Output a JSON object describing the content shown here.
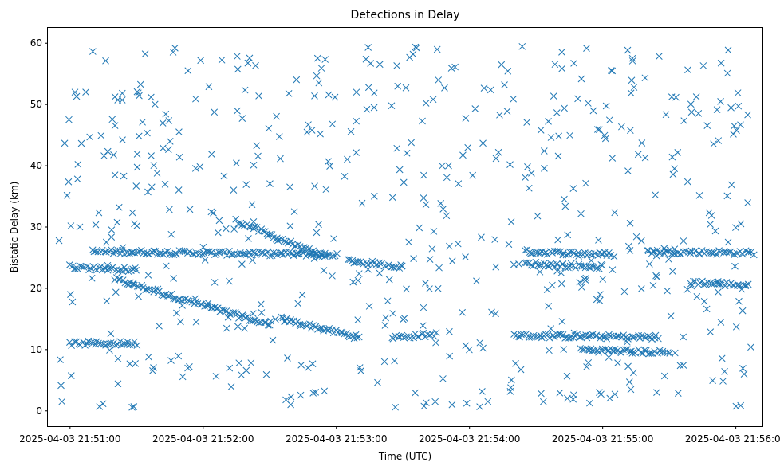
{
  "chart_data": {
    "type": "scatter",
    "title": "Detections in Delay",
    "xlabel": "Time (UTC)",
    "ylabel": "Bistatic Delay (km)",
    "x_axis": {
      "start": "2025-04-03 21:50:50",
      "end": "2025-04-03 21:56:12",
      "tick_labels": [
        "2025-04-03 21:51:00",
        "2025-04-03 21:52:00",
        "2025-04-03 21:53:00",
        "2025-04-03 21:54:00",
        "2025-04-03 21:55:00",
        "2025-04-03 21:56:00"
      ]
    },
    "y_axis": {
      "ylim": [
        -2.5,
        62.5
      ],
      "ticks": [
        0,
        10,
        20,
        30,
        40,
        50,
        60
      ]
    },
    "marker": "x",
    "color": "#1f77b4",
    "grid": false,
    "legend": "none",
    "tracks": [
      {
        "x0": "2025-04-03 21:51:20",
        "x1": "2025-04-03 21:52:30",
        "y0": 21.5,
        "y1": 14.0
      },
      {
        "x0": "2025-04-03 21:52:15",
        "x1": "2025-04-03 21:52:55",
        "y0": 31.0,
        "y1": 25.0
      },
      {
        "x0": "2025-04-03 21:52:35",
        "x1": "2025-04-03 21:53:10",
        "y0": 15.0,
        "y1": 12.0
      },
      {
        "x0": "2025-04-03 21:53:05",
        "x1": "2025-04-03 21:53:30",
        "y0": 24.5,
        "y1": 23.5
      },
      {
        "x0": "2025-04-03 21:53:25",
        "x1": "2025-04-03 21:53:45",
        "y0": 12.0,
        "y1": 12.5
      },
      {
        "x0": "2025-04-03 21:51:10",
        "x1": "2025-04-03 21:53:00",
        "y0": 26.0,
        "y1": 25.5
      },
      {
        "x0": "2025-04-03 21:54:25",
        "x1": "2025-04-03 21:55:05",
        "y0": 26.0,
        "y1": 25.5
      },
      {
        "x0": "2025-04-03 21:55:20",
        "x1": "2025-04-03 21:56:08",
        "y0": 26.0,
        "y1": 25.8
      },
      {
        "x0": "2025-04-03 21:54:20",
        "x1": "2025-04-03 21:55:25",
        "y0": 12.3,
        "y1": 12.0
      },
      {
        "x0": "2025-04-03 21:54:50",
        "x1": "2025-04-03 21:55:30",
        "y0": 10.0,
        "y1": 9.5
      },
      {
        "x0": "2025-04-03 21:55:40",
        "x1": "2025-04-03 21:56:05",
        "y0": 21.0,
        "y1": 20.5
      },
      {
        "x0": "2025-04-03 21:51:00",
        "x1": "2025-04-03 21:51:30",
        "y0": 23.5,
        "y1": 23.0
      },
      {
        "x0": "2025-04-03 21:54:25",
        "x1": "2025-04-03 21:55:00",
        "y0": 24.0,
        "y1": 23.5
      },
      {
        "x0": "2025-04-03 21:51:00",
        "x1": "2025-04-03 21:51:30",
        "y0": 11.0,
        "y1": 11.0
      }
    ],
    "scatter_region": {
      "x0": "2025-04-03 21:50:55",
      "x1": "2025-04-03 21:56:07",
      "y0": 0.5,
      "y1": 59.5
    }
  }
}
